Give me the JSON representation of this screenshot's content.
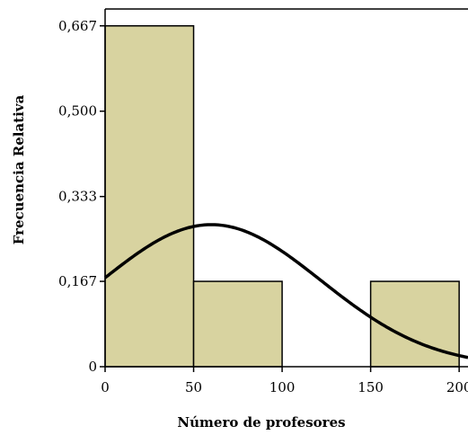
{
  "chart_data": {
    "type": "bar",
    "subtype": "histogram",
    "xlabel": "Número de profesores",
    "ylabel": "Frecuencia Relativa",
    "bins": [
      {
        "from": 0,
        "to": 50,
        "value": 0.667
      },
      {
        "from": 50,
        "to": 100,
        "value": 0.167
      },
      {
        "from": 100,
        "to": 150,
        "value": 0
      },
      {
        "from": 150,
        "to": 200,
        "value": 0.167
      }
    ],
    "x_ticks": [
      "0",
      "50",
      "100",
      "150",
      "200"
    ],
    "x_tick_values": [
      0,
      50,
      100,
      150,
      200
    ],
    "y_ticks": [
      "0",
      "0,167",
      "0,333",
      "0,500",
      "0,667"
    ],
    "y_tick_values": [
      0,
      0.167,
      0.333,
      0.5,
      0.667
    ],
    "xlim": [
      0,
      205
    ],
    "ylim": [
      0,
      0.7
    ],
    "grid": false,
    "curve": {
      "type": "normal-density",
      "mean": 60,
      "sd": 62,
      "scale_to_frequency": 0.278
    },
    "bar_color": "#d8d3a0",
    "bar_edge_color": "#000000",
    "curve_color": "#000000"
  }
}
